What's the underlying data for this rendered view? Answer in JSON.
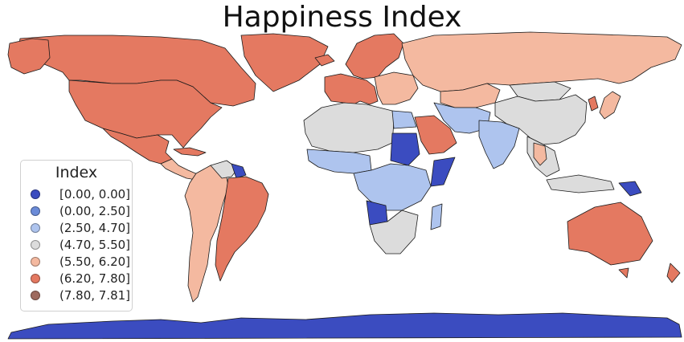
{
  "title": "Happiness Index",
  "legend": {
    "title": "Index",
    "items": [
      {
        "label": "[0.00, 0.00]",
        "color": "#3b4cc0"
      },
      {
        "label": "(0.00, 2.50]",
        "color": "#6b8bd8"
      },
      {
        "label": "(2.50, 4.70]",
        "color": "#aec4ee"
      },
      {
        "label": "(4.70, 5.50]",
        "color": "#dcdcdc"
      },
      {
        "label": "(5.50, 6.20]",
        "color": "#f4b9a0"
      },
      {
        "label": "(6.20, 7.80]",
        "color": "#e47961"
      },
      {
        "label": "(7.80, 7.81]",
        "color": "#9e6a5e"
      }
    ]
  },
  "chart_data": {
    "type": "choropleth",
    "title": "Happiness Index",
    "legend_title": "Index",
    "legend_position": "lower-left",
    "classes": [
      "[0.00, 0.00]",
      "(0.00, 2.50]",
      "(2.50, 4.70]",
      "(4.70, 5.50]",
      "(5.50, 6.20]",
      "(6.20, 7.80]",
      "(7.80, 7.81]"
    ],
    "regions": [
      {
        "region": "Canada",
        "class": "(6.20, 7.80]"
      },
      {
        "region": "United States",
        "class": "(6.20, 7.80]"
      },
      {
        "region": "Greenland",
        "class": "(6.20, 7.80]"
      },
      {
        "region": "Mexico",
        "class": "(6.20, 7.80]"
      },
      {
        "region": "Central America",
        "class": "(5.50, 6.20]"
      },
      {
        "region": "South America (west)",
        "class": "(5.50, 6.20]"
      },
      {
        "region": "Brazil",
        "class": "(6.20, 7.80]"
      },
      {
        "region": "Argentina / Chile",
        "class": "(5.50, 6.20]"
      },
      {
        "region": "Guianas",
        "class": "[0.00, 0.00]"
      },
      {
        "region": "Venezuela",
        "class": "(4.70, 5.50]"
      },
      {
        "region": "Western Europe",
        "class": "(6.20, 7.80]"
      },
      {
        "region": "Nordic countries",
        "class": "(6.20, 7.80]"
      },
      {
        "region": "Eastern Europe",
        "class": "(5.50, 6.20]"
      },
      {
        "region": "Russia",
        "class": "(5.50, 6.20]"
      },
      {
        "region": "Kazakhstan",
        "class": "(5.50, 6.20]"
      },
      {
        "region": "Mongolia / China",
        "class": "(4.70, 5.50]"
      },
      {
        "region": "Japan",
        "class": "(5.50, 6.20]"
      },
      {
        "region": "North Africa",
        "class": "(4.70, 5.50]"
      },
      {
        "region": "Egypt",
        "class": "(2.50, 4.70]"
      },
      {
        "region": "Saudi Arabia",
        "class": "(6.20, 7.80]"
      },
      {
        "region": "Iran / Afghanistan",
        "class": "(2.50, 4.70]"
      },
      {
        "region": "India",
        "class": "(2.50, 4.70]"
      },
      {
        "region": "Sudan",
        "class": "[0.00, 0.00]"
      },
      {
        "region": "Somalia",
        "class": "[0.00, 0.00]"
      },
      {
        "region": "West Africa",
        "class": "(2.50, 4.70]"
      },
      {
        "region": "Central / East Africa",
        "class": "(2.50, 4.70]"
      },
      {
        "region": "Angola",
        "class": "[0.00, 0.00]"
      },
      {
        "region": "Southern Africa",
        "class": "(4.70, 5.50]"
      },
      {
        "region": "Madagascar",
        "class": "(2.50, 4.70]"
      },
      {
        "region": "Southeast Asia",
        "class": "(4.70, 5.50]"
      },
      {
        "region": "Thailand",
        "class": "(5.50, 6.20]"
      },
      {
        "region": "Papua New Guinea",
        "class": "[0.00, 0.00]"
      },
      {
        "region": "Australia",
        "class": "(6.20, 7.80]"
      },
      {
        "region": "New Zealand",
        "class": "(6.20, 7.80]"
      },
      {
        "region": "Antarctica",
        "class": "[0.00, 0.00]"
      }
    ]
  }
}
